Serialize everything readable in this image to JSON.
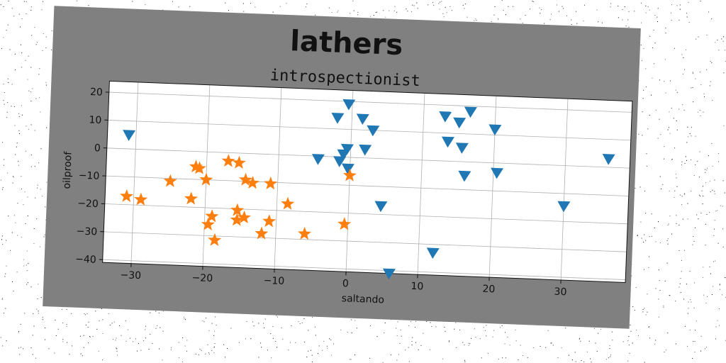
{
  "chart_data": {
    "type": "scatter",
    "title": "lathers",
    "subtitle": "introspectionist",
    "xlabel": "saltando",
    "ylabel": "oilproof",
    "xlim": [
      -34,
      39
    ],
    "ylim": [
      -41,
      24
    ],
    "xticks": [
      -30,
      -20,
      -10,
      0,
      10,
      20,
      30
    ],
    "yticks": [
      -40,
      -30,
      -20,
      -10,
      0,
      10,
      20
    ],
    "grid": true,
    "series": [
      {
        "marker": "triangle-down",
        "color": "#1f77b4",
        "points": [
          [
            -31,
            5
          ],
          [
            -2,
            14
          ],
          [
            -0.5,
            19
          ],
          [
            1.5,
            14
          ],
          [
            3,
            10
          ],
          [
            -0.5,
            3
          ],
          [
            -1,
            1
          ],
          [
            2,
            3
          ],
          [
            -4.5,
            -1
          ],
          [
            -1.5,
            -1.5
          ],
          [
            -0.3,
            -4
          ],
          [
            4.5,
            -17
          ],
          [
            6,
            -41
          ],
          [
            12,
            -33
          ],
          [
            13,
            16
          ],
          [
            15,
            14
          ],
          [
            16.5,
            18
          ],
          [
            13.5,
            7
          ],
          [
            15.5,
            5
          ],
          [
            16,
            -5
          ],
          [
            20,
            12
          ],
          [
            20.5,
            -3.5
          ],
          [
            30,
            -14.5
          ],
          [
            36,
            3
          ]
        ]
      },
      {
        "marker": "star",
        "color": "#ff7f0e",
        "points": [
          [
            -31,
            -17
          ],
          [
            -29,
            -18
          ],
          [
            -25,
            -11
          ],
          [
            -22,
            -17
          ],
          [
            -21.5,
            -5.5
          ],
          [
            -21,
            -6
          ],
          [
            -20,
            -10
          ],
          [
            -19.5,
            -26
          ],
          [
            -19,
            -23
          ],
          [
            -18.5,
            -31.5
          ],
          [
            -17,
            -3
          ],
          [
            -15.5,
            -3.5
          ],
          [
            -15.5,
            -20.5
          ],
          [
            -15.5,
            -24
          ],
          [
            -14.5,
            -23
          ],
          [
            -14.5,
            -9.5
          ],
          [
            -13.5,
            -10.5
          ],
          [
            -12,
            -28.5
          ],
          [
            -11,
            -10.5
          ],
          [
            -11,
            -24
          ],
          [
            -8.5,
            -17.5
          ],
          [
            -6,
            -28
          ],
          [
            -0.5,
            -24
          ],
          [
            0,
            -6.5
          ]
        ]
      }
    ]
  }
}
